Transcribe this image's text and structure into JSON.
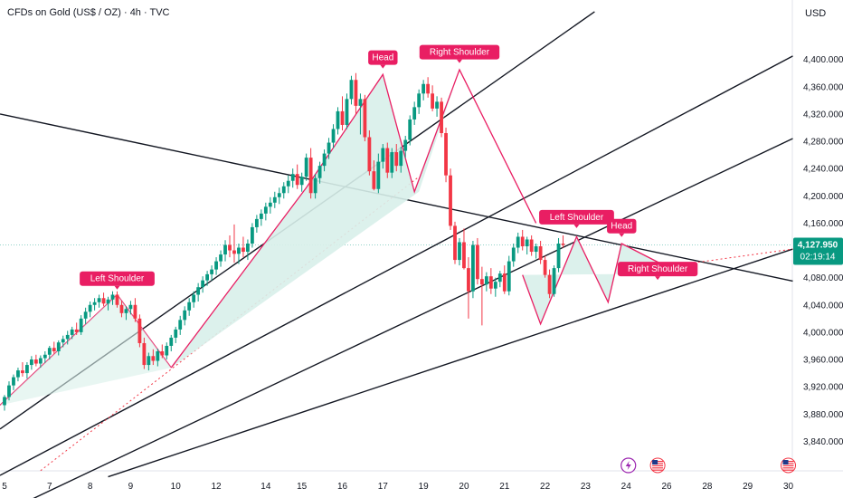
{
  "header": {
    "title": "CFDs on Gold (US$ / OZ) · 4h · TVC",
    "currency": "USD"
  },
  "price_tag": {
    "price": "4,127.950",
    "countdown": "02:19:14"
  },
  "colors": {
    "up": "#089981",
    "down": "#f23645",
    "pattern": "#e91e63",
    "fill": "#d8f0ea"
  },
  "chart_data": {
    "type": "candlestick",
    "title": "CFDs on Gold (US$ / OZ) · 4h · TVC",
    "ylabel": "USD",
    "ylim": [
      3810,
      4450
    ],
    "y_ticks": [
      "4,400.000",
      "4,360.000",
      "4,320.000",
      "4,280.000",
      "4,240.000",
      "4,200.000",
      "4,160.000",
      "4,120.000",
      "4,080.000",
      "4,040.000",
      "4,000.000",
      "3,960.000",
      "3,920.000",
      "3,880.000",
      "3,840.000"
    ],
    "y_tick_values": [
      4400,
      4360,
      4320,
      4280,
      4240,
      4200,
      4160,
      4120,
      4080,
      4040,
      4000,
      3960,
      3920,
      3880,
      3840
    ],
    "x_ticks": [
      "5",
      "7",
      "8",
      "9",
      "10",
      "12",
      "14",
      "15",
      "16",
      "17",
      "19",
      "20",
      "21",
      "22",
      "23",
      "24",
      "26",
      "28",
      "29",
      "30"
    ],
    "x_tick_index": [
      0,
      10,
      19,
      28,
      38,
      47,
      58,
      66,
      75,
      84,
      93,
      102,
      111,
      120,
      129,
      138,
      147,
      156,
      165,
      174
    ],
    "last_price": 4127.95,
    "candles": [
      [
        3893,
        3908,
        3885,
        3905
      ],
      [
        3905,
        3928,
        3900,
        3922
      ],
      [
        3922,
        3938,
        3915,
        3934
      ],
      [
        3934,
        3948,
        3928,
        3944
      ],
      [
        3944,
        3956,
        3935,
        3940
      ],
      [
        3940,
        3956,
        3932,
        3952
      ],
      [
        3952,
        3965,
        3945,
        3960
      ],
      [
        3960,
        3967,
        3950,
        3954
      ],
      [
        3954,
        3966,
        3948,
        3962
      ],
      [
        3962,
        3972,
        3955,
        3967
      ],
      [
        3967,
        3980,
        3960,
        3977
      ],
      [
        3977,
        3986,
        3968,
        3972
      ],
      [
        3972,
        3988,
        3966,
        3985
      ],
      [
        3985,
        3995,
        3978,
        3990
      ],
      [
        3990,
        4002,
        3982,
        3996
      ],
      [
        3996,
        4008,
        3990,
        4004
      ],
      [
        4004,
        4014,
        3996,
        4000
      ],
      [
        4000,
        4025,
        3996,
        4020
      ],
      [
        4020,
        4036,
        4012,
        4030
      ],
      [
        4030,
        4045,
        4022,
        4040
      ],
      [
        4040,
        4050,
        4032,
        4044
      ],
      [
        4044,
        4055,
        4036,
        4050
      ],
      [
        4050,
        4058,
        4038,
        4042
      ],
      [
        4042,
        4052,
        4032,
        4048
      ],
      [
        4048,
        4060,
        4040,
        4055
      ],
      [
        4055,
        4060,
        4036,
        4040
      ],
      [
        4040,
        4046,
        4022,
        4028
      ],
      [
        4028,
        4038,
        4018,
        4034
      ],
      [
        4034,
        4046,
        4026,
        4040
      ],
      [
        4040,
        4050,
        4015,
        4020
      ],
      [
        4020,
        4026,
        3978,
        3984
      ],
      [
        3984,
        3992,
        3946,
        3952
      ],
      [
        3952,
        3970,
        3944,
        3965
      ],
      [
        3965,
        3975,
        3952,
        3958
      ],
      [
        3958,
        3976,
        3950,
        3972
      ],
      [
        3972,
        3982,
        3962,
        3966
      ],
      [
        3966,
        3985,
        3960,
        3980
      ],
      [
        3980,
        3996,
        3972,
        3992
      ],
      [
        3992,
        4008,
        3984,
        4004
      ],
      [
        4004,
        4024,
        3996,
        4018
      ],
      [
        4018,
        4038,
        4010,
        4032
      ],
      [
        4032,
        4050,
        4024,
        4044
      ],
      [
        4044,
        4060,
        4036,
        4055
      ],
      [
        4055,
        4072,
        4045,
        4066
      ],
      [
        4066,
        4082,
        4058,
        4076
      ],
      [
        4076,
        4090,
        4068,
        4085
      ],
      [
        4085,
        4098,
        4076,
        4092
      ],
      [
        4092,
        4110,
        4084,
        4104
      ],
      [
        4104,
        4120,
        4096,
        4114
      ],
      [
        4114,
        4135,
        4104,
        4128
      ],
      [
        4128,
        4142,
        4110,
        4120
      ],
      [
        4120,
        4158,
        4102,
        4115
      ],
      [
        4115,
        4130,
        4100,
        4124
      ],
      [
        4124,
        4140,
        4110,
        4118
      ],
      [
        4118,
        4136,
        4106,
        4130
      ],
      [
        4130,
        4160,
        4124,
        4154
      ],
      [
        4154,
        4172,
        4146,
        4166
      ],
      [
        4166,
        4180,
        4156,
        4174
      ],
      [
        4174,
        4190,
        4164,
        4184
      ],
      [
        4184,
        4198,
        4174,
        4190
      ],
      [
        4190,
        4206,
        4182,
        4198
      ],
      [
        4198,
        4212,
        4188,
        4204
      ],
      [
        4204,
        4220,
        4196,
        4214
      ],
      [
        4214,
        4230,
        4204,
        4222
      ],
      [
        4222,
        4240,
        4212,
        4232
      ],
      [
        4232,
        4246,
        4210,
        4216
      ],
      [
        4216,
        4234,
        4206,
        4228
      ],
      [
        4228,
        4262,
        4222,
        4256
      ],
      [
        4256,
        4270,
        4196,
        4204
      ],
      [
        4204,
        4232,
        4196,
        4226
      ],
      [
        4226,
        4250,
        4218,
        4244
      ],
      [
        4244,
        4268,
        4236,
        4262
      ],
      [
        4262,
        4285,
        4254,
        4278
      ],
      [
        4278,
        4305,
        4270,
        4298
      ],
      [
        4298,
        4330,
        4290,
        4324
      ],
      [
        4324,
        4346,
        4296,
        4304
      ],
      [
        4304,
        4350,
        4298,
        4342
      ],
      [
        4342,
        4376,
        4334,
        4370
      ],
      [
        4370,
        4380,
        4320,
        4332
      ],
      [
        4332,
        4350,
        4290,
        4342
      ],
      [
        4342,
        4348,
        4280,
        4286
      ],
      [
        4286,
        4296,
        4230,
        4236
      ],
      [
        4236,
        4252,
        4208,
        4210
      ],
      [
        4210,
        4262,
        4204,
        4250
      ],
      [
        4250,
        4276,
        4240,
        4270
      ],
      [
        4270,
        4278,
        4226,
        4234
      ],
      [
        4234,
        4270,
        4226,
        4264
      ],
      [
        4264,
        4276,
        4236,
        4244
      ],
      [
        4244,
        4272,
        4234,
        4266
      ],
      [
        4266,
        4288,
        4256,
        4282
      ],
      [
        4282,
        4318,
        4274,
        4312
      ],
      [
        4312,
        4338,
        4304,
        4330
      ],
      [
        4330,
        4356,
        4320,
        4350
      ],
      [
        4350,
        4370,
        4340,
        4364
      ],
      [
        4364,
        4374,
        4344,
        4350
      ],
      [
        4350,
        4362,
        4324,
        4328
      ],
      [
        4328,
        4346,
        4316,
        4338
      ],
      [
        4338,
        4344,
        4286,
        4292
      ],
      [
        4292,
        4300,
        4220,
        4230
      ],
      [
        4230,
        4240,
        4150,
        4156
      ],
      [
        4156,
        4162,
        4100,
        4106
      ],
      [
        4106,
        4138,
        4098,
        4132
      ],
      [
        4132,
        4152,
        4092,
        4094
      ],
      [
        4094,
        4110,
        4020,
        4060
      ],
      [
        4060,
        4134,
        4050,
        4128
      ],
      [
        4128,
        4138,
        4070,
        4078
      ],
      [
        4078,
        4096,
        4010,
        4070
      ],
      [
        4070,
        4088,
        4060,
        4082
      ],
      [
        4082,
        4094,
        4056,
        4064
      ],
      [
        4064,
        4080,
        4052,
        4074
      ],
      [
        4074,
        4090,
        4066,
        4086
      ],
      [
        4086,
        4098,
        4056,
        4060
      ],
      [
        4060,
        4112,
        4054,
        4104
      ],
      [
        4104,
        4130,
        4096,
        4124
      ],
      [
        4124,
        4146,
        4116,
        4140
      ],
      [
        4140,
        4150,
        4120,
        4126
      ],
      [
        4126,
        4140,
        4114,
        4136
      ],
      [
        4136,
        4142,
        4112,
        4118
      ],
      [
        4118,
        4130,
        4108,
        4126
      ],
      [
        4126,
        4134,
        4100,
        4106
      ],
      [
        4106,
        4112,
        4080,
        4084
      ],
      [
        4084,
        4092,
        4050,
        4056
      ],
      [
        4056,
        4098,
        4052,
        4094
      ],
      [
        4094,
        4138,
        4088,
        4130
      ],
      [
        4130,
        4142,
        4124,
        4128
      ]
    ]
  },
  "annotations": [
    {
      "text": "Left Shoulder"
    },
    {
      "text": "Head"
    },
    {
      "text": "Right Shoulder"
    },
    {
      "text": "Left Shoulder"
    },
    {
      "text": "Head"
    },
    {
      "text": "Right Shoulder"
    }
  ],
  "events": [
    {
      "icon": "lightning-icon"
    },
    {
      "icon": "us-flag-icon"
    },
    {
      "icon": "us-flag-icon"
    }
  ]
}
